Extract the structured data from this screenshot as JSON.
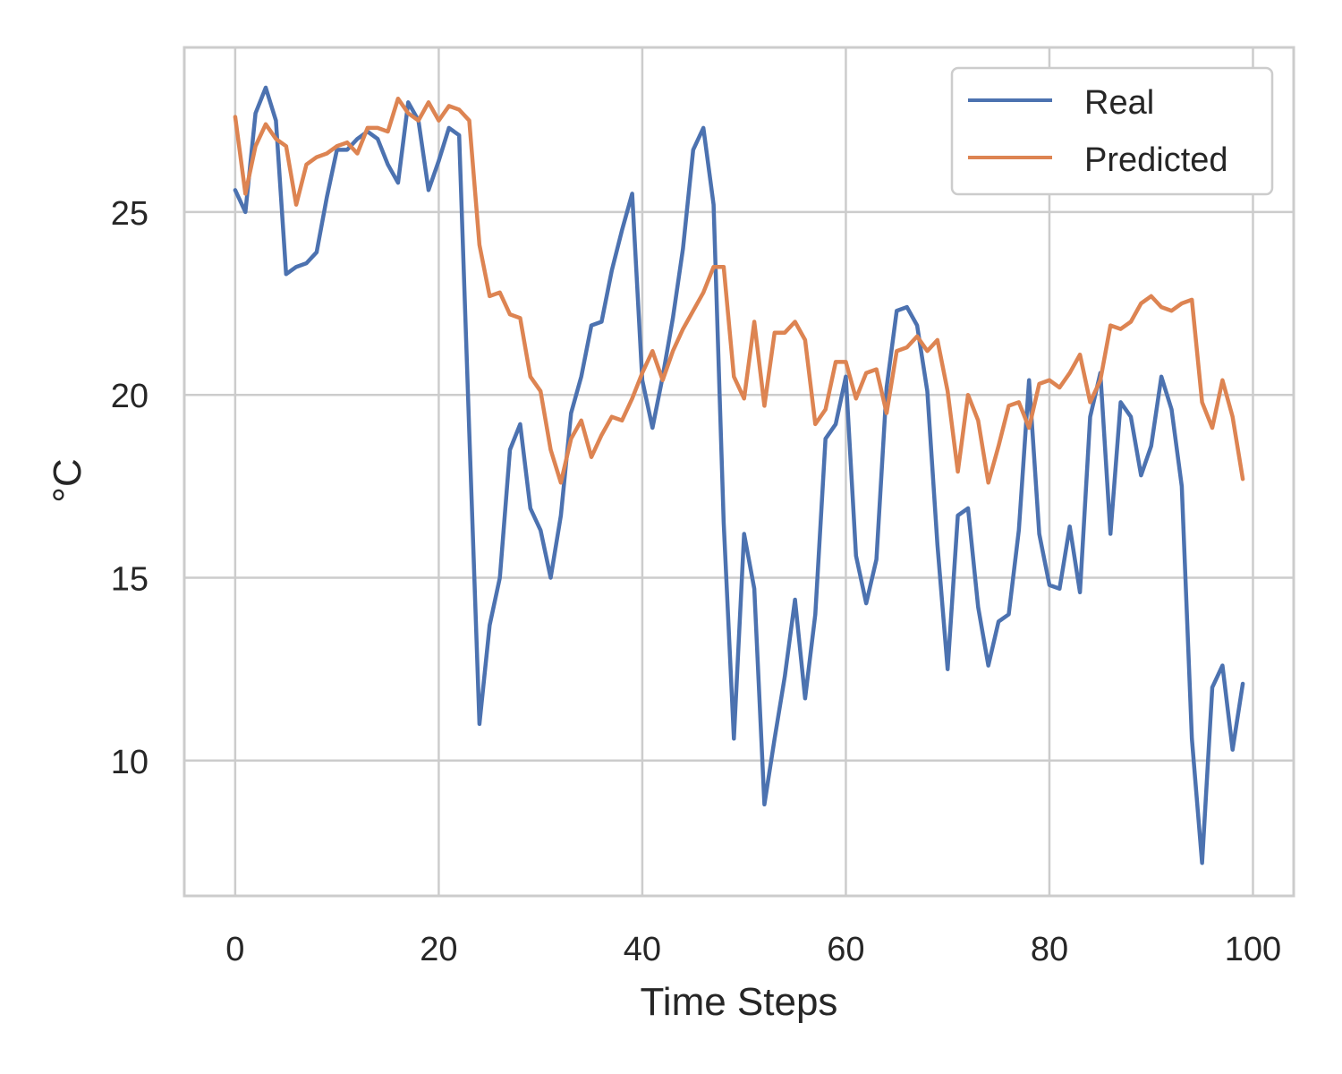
{
  "chart_data": {
    "type": "line",
    "title": "",
    "xlabel": "Time Steps",
    "ylabel": "°C",
    "xlim": [
      -5,
      104
    ],
    "ylim": [
      6.3,
      29.5
    ],
    "xticks": [
      0,
      20,
      40,
      60,
      80,
      100
    ],
    "xtick_labels": [
      "0",
      "20",
      "40",
      "60",
      "80",
      "100"
    ],
    "yticks": [
      10,
      15,
      20,
      25
    ],
    "ytick_labels": [
      "10",
      "15",
      "20",
      "25"
    ],
    "grid": true,
    "legend_position": "top-right",
    "x": [
      0,
      1,
      2,
      3,
      4,
      5,
      6,
      7,
      8,
      9,
      10,
      11,
      12,
      13,
      14,
      15,
      16,
      17,
      18,
      19,
      20,
      21,
      22,
      23,
      24,
      25,
      26,
      27,
      28,
      29,
      30,
      31,
      32,
      33,
      34,
      35,
      36,
      37,
      38,
      39,
      40,
      41,
      42,
      43,
      44,
      45,
      46,
      47,
      48,
      49,
      50,
      51,
      52,
      53,
      54,
      55,
      56,
      57,
      58,
      59,
      60,
      61,
      62,
      63,
      64,
      65,
      66,
      67,
      68,
      69,
      70,
      71,
      72,
      73,
      74,
      75,
      76,
      77,
      78,
      79,
      80,
      81,
      82,
      83,
      84,
      85,
      86,
      87,
      88,
      89,
      90,
      91,
      92,
      93,
      94,
      95,
      96,
      97,
      98,
      99
    ],
    "series": [
      {
        "name": "Real",
        "color": "#4c72b0",
        "values": [
          25.6,
          25.0,
          27.7,
          28.4,
          27.5,
          23.3,
          23.5,
          23.6,
          23.9,
          25.4,
          26.7,
          26.7,
          27.0,
          27.2,
          27.0,
          26.3,
          25.8,
          28.0,
          27.5,
          25.6,
          26.4,
          27.3,
          27.1,
          19.0,
          11.0,
          13.7,
          15.0,
          18.5,
          19.2,
          16.9,
          16.3,
          15.0,
          16.7,
          19.5,
          20.5,
          21.9,
          22.0,
          23.4,
          24.5,
          25.5,
          20.4,
          19.1,
          20.5,
          22.1,
          24.0,
          26.7,
          27.3,
          25.2,
          16.5,
          10.6,
          16.2,
          14.7,
          8.8,
          10.6,
          12.3,
          14.4,
          11.7,
          14.0,
          18.8,
          19.2,
          20.5,
          15.6,
          14.3,
          15.5,
          20.2,
          22.3,
          22.4,
          21.9,
          20.1,
          15.9,
          12.5,
          16.7,
          16.9,
          14.2,
          12.6,
          13.8,
          14.0,
          16.3,
          20.4,
          16.2,
          14.8,
          14.7,
          16.4,
          14.6,
          19.4,
          20.6,
          16.2,
          19.8,
          19.4,
          17.8,
          18.6,
          20.5,
          19.6,
          17.5,
          10.6,
          7.2,
          12.0,
          12.6,
          10.3,
          12.1
        ]
      },
      {
        "name": "Predicted",
        "color": "#dd8452",
        "values": [
          27.6,
          25.5,
          26.8,
          27.4,
          27.0,
          26.8,
          25.2,
          26.3,
          26.5,
          26.6,
          26.8,
          26.9,
          26.6,
          27.3,
          27.3,
          27.2,
          28.1,
          27.7,
          27.5,
          28.0,
          27.5,
          27.9,
          27.8,
          27.5,
          24.1,
          22.7,
          22.8,
          22.2,
          22.1,
          20.5,
          20.1,
          18.5,
          17.6,
          18.8,
          19.3,
          18.3,
          18.9,
          19.4,
          19.3,
          19.9,
          20.6,
          21.2,
          20.4,
          21.2,
          21.8,
          22.3,
          22.8,
          23.5,
          23.5,
          20.5,
          19.9,
          22.0,
          19.7,
          21.7,
          21.7,
          22.0,
          21.5,
          19.2,
          19.6,
          20.9,
          20.9,
          19.9,
          20.6,
          20.7,
          19.5,
          21.2,
          21.3,
          21.6,
          21.2,
          21.5,
          20.1,
          17.9,
          20.0,
          19.3,
          17.6,
          18.6,
          19.7,
          19.8,
          19.1,
          20.3,
          20.4,
          20.2,
          20.6,
          21.1,
          19.8,
          20.4,
          21.9,
          21.8,
          22.0,
          22.5,
          22.7,
          22.4,
          22.3,
          22.5,
          22.6,
          19.8,
          19.1,
          20.4,
          19.4,
          17.7
        ]
      }
    ]
  }
}
